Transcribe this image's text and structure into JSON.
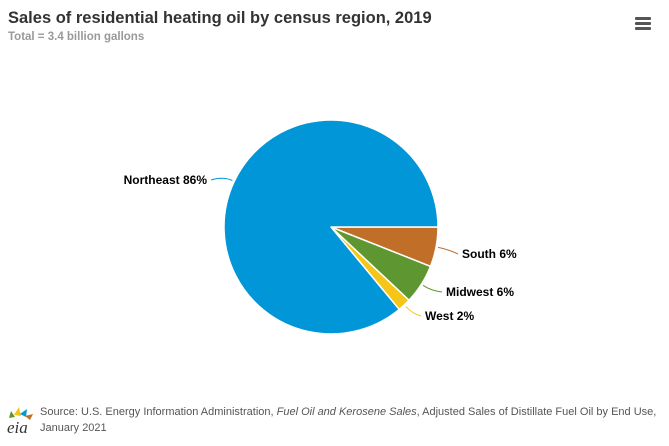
{
  "chart_data": {
    "type": "pie",
    "title": "Sales of residential heating oil by census region, 2019",
    "subtitle": "Total = 3.4 billion gallons",
    "slices": [
      {
        "label": "South 6%",
        "value": 6,
        "color": "#c16e28"
      },
      {
        "label": "Midwest 6%",
        "value": 6,
        "color": "#5e9732"
      },
      {
        "label": "West 2%",
        "value": 2,
        "color": "#f5c518"
      },
      {
        "label": "Northeast 86%",
        "value": 86,
        "color": "#0096d7"
      }
    ]
  },
  "menu": {
    "icon": "hamburger-menu-icon"
  },
  "footer": {
    "logo_text": "eia",
    "source_prefix": "Source: U.S. Energy Information Administration, ",
    "source_title": "Fuel Oil and Kerosene Sales",
    "source_suffix": ", Adjusted Sales of Distillate Fuel Oil by End Use, January 2021"
  }
}
